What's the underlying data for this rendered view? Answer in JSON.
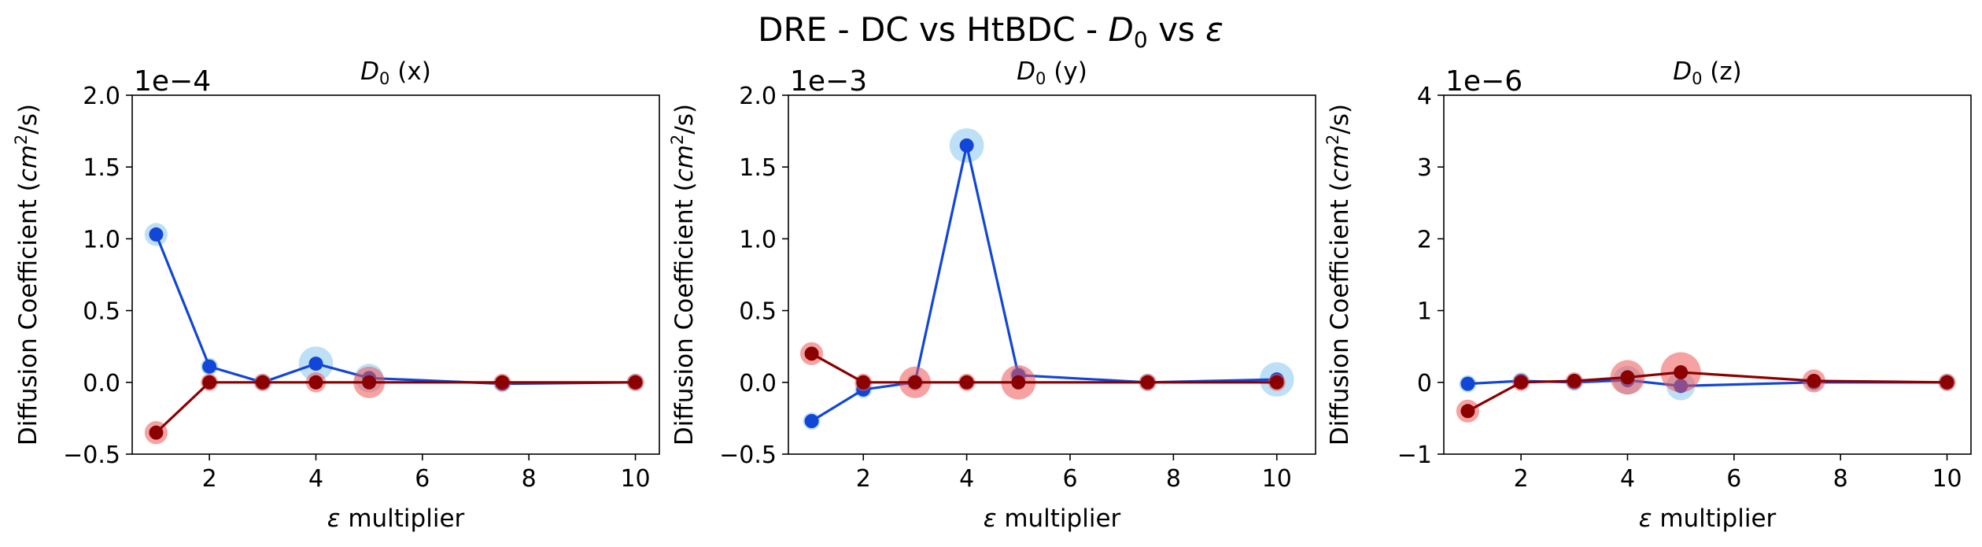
{
  "figure": {
    "title_pre": "DRE - DC vs HtBDC - ",
    "title_sym": "D",
    "title_sub": "0",
    "title_mid": " vs ",
    "title_eps": "ε"
  },
  "colors": {
    "blue_line": "#1146d6",
    "blue_halo": "#87c6f0",
    "red_line": "#8b0000",
    "red_halo": "#ee5555"
  },
  "chart_data": [
    {
      "type": "scatter",
      "title_sym": "D",
      "title_sub": "0",
      "title_rest": " (x)",
      "xlabel_eps": "ε",
      "xlabel_rest": " multiplier",
      "ylabel_pre": "Diffusion Coefficient (",
      "ylabel_unit": "cm",
      "ylabel_sup": "2",
      "ylabel_post": "/s)",
      "offset_text": "1e−4",
      "xlim": [
        0.55,
        10.45
      ],
      "ylim": [
        -0.5,
        2.0
      ],
      "xticks": [
        2,
        4,
        6,
        8,
        10
      ],
      "xtick_labels": [
        "2",
        "4",
        "6",
        "8",
        "10"
      ],
      "yticks": [
        -0.5,
        0.0,
        0.5,
        1.0,
        1.5,
        2.0
      ],
      "ytick_labels": [
        "−0.5",
        "0.0",
        "0.5",
        "1.0",
        "1.5",
        "2.0"
      ],
      "series": [
        {
          "color": "blue",
          "x": [
            1,
            2,
            3,
            4,
            5,
            7.5,
            10
          ],
          "y": [
            1.03,
            0.11,
            0.0,
            0.13,
            0.03,
            -0.01,
            0.0
          ],
          "err": [
            0.08,
            0.04,
            0.03,
            0.12,
            0.1,
            0.04,
            0.03
          ]
        },
        {
          "color": "red",
          "x": [
            1,
            2,
            3,
            4,
            5,
            7.5,
            10
          ],
          "y": [
            -0.35,
            0.0,
            0.0,
            0.0,
            0.0,
            0.0,
            0.0
          ],
          "err": [
            0.08,
            0.03,
            0.03,
            0.07,
            0.11,
            0.04,
            0.05
          ]
        }
      ]
    },
    {
      "type": "scatter",
      "title_sym": "D",
      "title_sub": "0",
      "title_rest": " (y)",
      "xlabel_eps": "ε",
      "xlabel_rest": " multiplier",
      "ylabel_pre": "Diffusion Coefficient (",
      "ylabel_unit": "cm",
      "ylabel_sup": "2",
      "ylabel_post": "/s)",
      "offset_text": "1e−3",
      "xlim": [
        0.55,
        10.75
      ],
      "ylim": [
        -0.5,
        2.0
      ],
      "xticks": [
        2,
        4,
        6,
        8,
        10
      ],
      "xtick_labels": [
        "2",
        "4",
        "6",
        "8",
        "10"
      ],
      "yticks": [
        -0.5,
        0.0,
        0.5,
        1.0,
        1.5,
        2.0
      ],
      "ytick_labels": [
        "−0.5",
        "0.0",
        "0.5",
        "1.0",
        "1.5",
        "2.0"
      ],
      "series": [
        {
          "color": "blue",
          "x": [
            1,
            2,
            3,
            4,
            5,
            7.5,
            10
          ],
          "y": [
            -0.27,
            -0.05,
            0.0,
            1.65,
            0.05,
            0.0,
            0.02
          ],
          "err": [
            0.03,
            0.04,
            0.04,
            0.12,
            0.04,
            0.04,
            0.12
          ]
        },
        {
          "color": "red",
          "x": [
            1,
            2,
            3,
            4,
            5,
            7.5,
            10
          ],
          "y": [
            0.2,
            0.0,
            0.0,
            0.0,
            0.0,
            0.0,
            0.0
          ],
          "err": [
            0.08,
            0.05,
            0.11,
            0.06,
            0.12,
            0.06,
            0.04
          ]
        }
      ]
    },
    {
      "type": "scatter",
      "title_sym": "D",
      "title_sub": "0",
      "title_rest": " (z)",
      "xlabel_eps": "ε",
      "xlabel_rest": " multiplier",
      "ylabel_pre": "Diffusion Coefficient (",
      "ylabel_unit": "cm",
      "ylabel_sup": "2",
      "ylabel_post": "/s)",
      "offset_text": "1e−6",
      "xlim": [
        0.55,
        10.45
      ],
      "ylim": [
        -1.0,
        4.0
      ],
      "xticks": [
        2,
        4,
        6,
        8,
        10
      ],
      "xtick_labels": [
        "2",
        "4",
        "6",
        "8",
        "10"
      ],
      "yticks": [
        -1,
        0,
        1,
        2,
        3,
        4
      ],
      "ytick_labels": [
        "−1",
        "0",
        "1",
        "2",
        "3",
        "4"
      ],
      "series": [
        {
          "color": "blue",
          "x": [
            1,
            2,
            3,
            4,
            5,
            7.5,
            10
          ],
          "y": [
            -0.02,
            0.02,
            0.0,
            0.03,
            -0.05,
            0.0,
            0.0
          ],
          "err": [
            0.06,
            0.06,
            0.08,
            0.2,
            0.2,
            0.08,
            0.08
          ]
        },
        {
          "color": "red",
          "x": [
            1,
            2,
            3,
            4,
            5,
            7.5,
            10
          ],
          "y": [
            -0.4,
            0.0,
            0.02,
            0.07,
            0.14,
            0.02,
            0.0
          ],
          "err": [
            0.16,
            0.08,
            0.12,
            0.24,
            0.28,
            0.16,
            0.08
          ]
        }
      ]
    }
  ]
}
